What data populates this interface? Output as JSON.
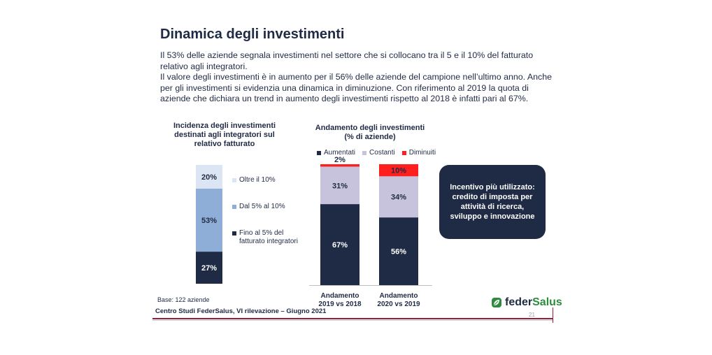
{
  "slide": {
    "title": "Dinamica degli investimenti",
    "paragraphs": [
      "Il 53% delle aziende segnala investimenti nel settore che si collocano tra il 5 e il 10% del fatturato relativo agli integratori.",
      "Il valore degli investimenti è in aumento per il 56% delle aziende del campione nell’ultimo anno. Anche per gli investimenti si evidenzia una dinamica in diminuzione. Con riferimento al 2019 la quota di aziende che dichiara un trend in aumento degli investimenti rispetto al 2018 è infatti pari al 67%."
    ],
    "incentive_box": "Incentivo più utilizzato: credito di imposta per attività  di ricerca, sviluppo e innovazione",
    "base_note": "Base: 122 aziende",
    "footer_source": "Centro Studi FederSalus, VI rilevazione – Giugno 2021",
    "page_number": "21",
    "logo": {
      "part1": "feder",
      "part2": "Salus",
      "icon": "leaf-icon"
    }
  },
  "colors": {
    "navy": "#1f2a44",
    "mid_blue": "#8eaed8",
    "light_blue": "#dbe5f3",
    "lavender": "#c8c3dc",
    "red": "#ff1f1f",
    "accent_line": "#9b1b3a",
    "logo_green": "#2e8b3d"
  },
  "chart_data": [
    {
      "type": "bar",
      "stacked": true,
      "title": "Incidenza degli investimenti destinati agli integratori sul relativo fatturato",
      "categories": [
        ""
      ],
      "series": [
        {
          "name": "Fino al 5% del fatturato integratori",
          "values": [
            27
          ],
          "color": "#1f2a44",
          "label": "27%"
        },
        {
          "name": "Dal 5% al 10%",
          "values": [
            53
          ],
          "color": "#8eaed8",
          "label": "53%"
        },
        {
          "name": "Oltre il 10%",
          "values": [
            20
          ],
          "color": "#dbe5f3",
          "label": "20%"
        }
      ],
      "legend_order": [
        "Oltre il 10%",
        "Dal 5% al 10%",
        "Fino al 5% del fatturato integratori"
      ],
      "ylim": [
        0,
        100
      ],
      "legend": "right"
    },
    {
      "type": "bar",
      "stacked": true,
      "title": "Andamento degli investimenti (% di aziende)",
      "categories": [
        "Andamento 2019 vs 2018",
        "Andamento 2020 vs 2019"
      ],
      "series": [
        {
          "name": "Aumentati",
          "values": [
            67,
            56
          ],
          "color": "#1f2a44",
          "labels": [
            "67%",
            "56%"
          ]
        },
        {
          "name": "Costanti",
          "values": [
            31,
            34
          ],
          "color": "#c8c3dc",
          "labels": [
            "31%",
            "34%"
          ]
        },
        {
          "name": "Diminuiti",
          "values": [
            2,
            10
          ],
          "color": "#ff1f1f",
          "labels": [
            "2%",
            "10%"
          ]
        }
      ],
      "ylim": [
        0,
        100
      ],
      "legend": "top"
    }
  ]
}
